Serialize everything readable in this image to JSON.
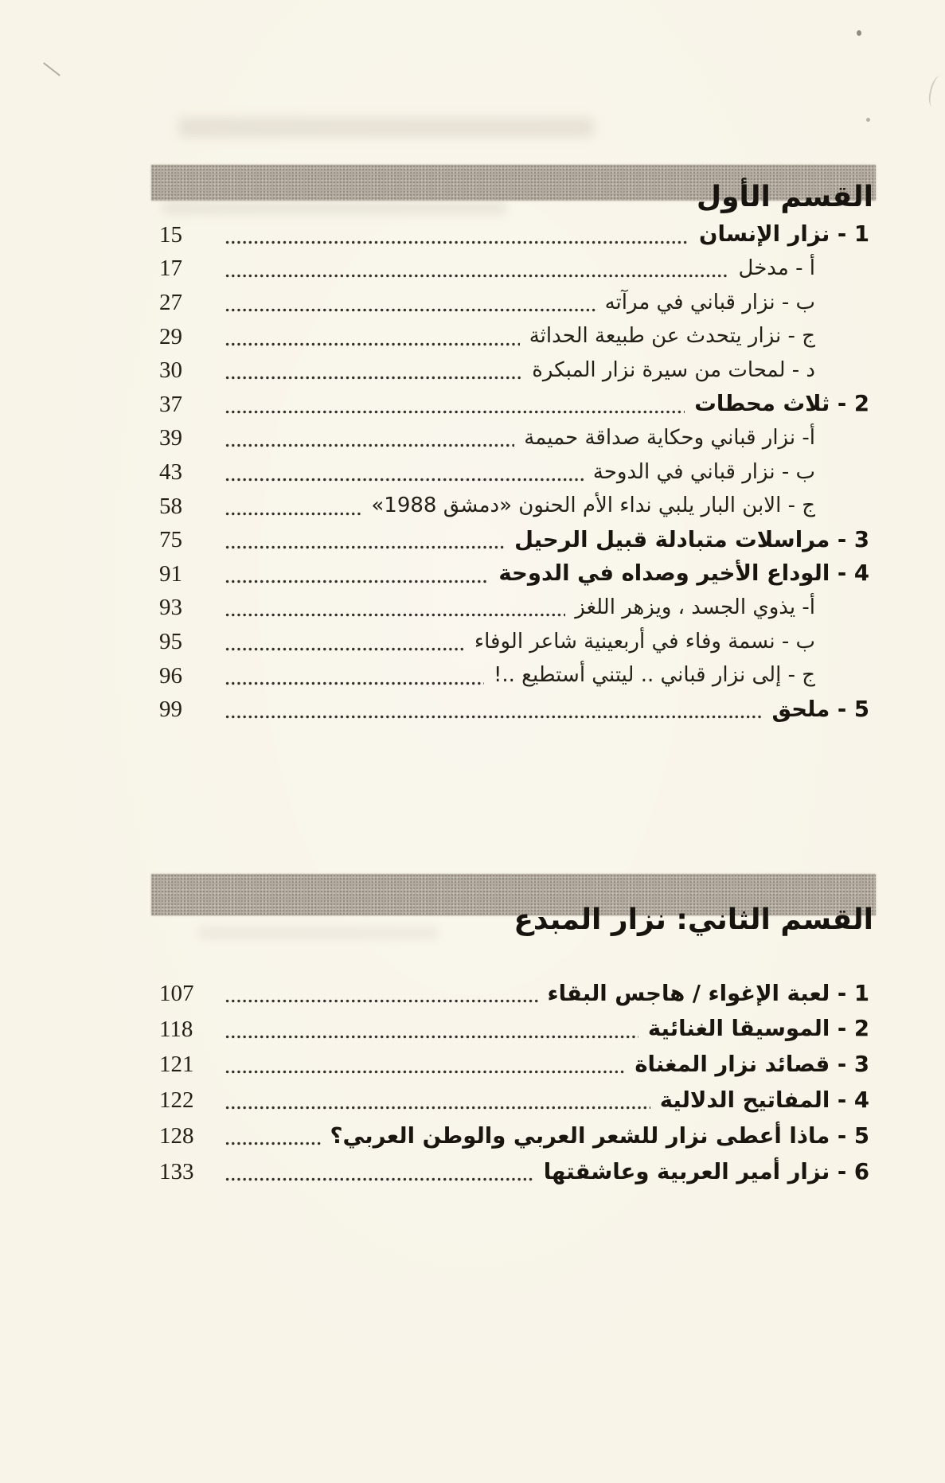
{
  "page": {
    "background": "#f8f4e8",
    "bar_color": "#b4aca0",
    "text_color": "#1e1a14"
  },
  "sections": [
    {
      "title": "القسم الأول",
      "entries": [
        {
          "label": "1 - نزار الإنسان",
          "page": "15",
          "bold": true,
          "indent": false
        },
        {
          "label": "أ - مدخل",
          "page": "17",
          "bold": false,
          "indent": true
        },
        {
          "label": "ب - نزار قباني في مرآته",
          "page": "27",
          "bold": false,
          "indent": true
        },
        {
          "label": "ج - نزار يتحدث عن طبيعة الحداثة",
          "page": "29",
          "bold": false,
          "indent": true
        },
        {
          "label": "د - لمحات من سيرة نزار المبكرة",
          "page": "30",
          "bold": false,
          "indent": true
        },
        {
          "label": "2 - ثلاث محطات",
          "page": "37",
          "bold": true,
          "indent": false
        },
        {
          "label": "أ- نزار قباني وحكاية صداقة حميمة",
          "page": "39",
          "bold": false,
          "indent": true
        },
        {
          "label": "ب - نزار قباني في الدوحة",
          "page": "43",
          "bold": false,
          "indent": true
        },
        {
          "label": "ج - الابن البار يلبي نداء الأم الحنون «دمشق 1988»",
          "page": "58",
          "bold": false,
          "indent": true
        },
        {
          "label": "3 - مراسلات متبادلة قبيل الرحيل",
          "page": "75",
          "bold": true,
          "indent": false
        },
        {
          "label": "4 - الوداع الأخير وصداه في الدوحة",
          "page": "91",
          "bold": true,
          "indent": false
        },
        {
          "label": "أ- يذوي الجسد ، ويزهر اللغز",
          "page": "93",
          "bold": false,
          "indent": true
        },
        {
          "label": "ب - نسمة وفاء في أربعينية شاعر الوفاء",
          "page": "95",
          "bold": false,
          "indent": true
        },
        {
          "label": "ج - إلى نزار قباني .. ليتني أستطيع ..!",
          "page": "96",
          "bold": false,
          "indent": true
        },
        {
          "label": "5 - ملحق",
          "page": "99",
          "bold": true,
          "indent": false
        }
      ]
    },
    {
      "title": "القسم الثاني: نزار المبدع",
      "entries": [
        {
          "label": "1 - لعبة الإغواء / هاجس البقاء",
          "page": "107",
          "bold": true,
          "indent": false
        },
        {
          "label": "2 - الموسيقا الغنائية",
          "page": "118",
          "bold": true,
          "indent": false
        },
        {
          "label": "3 - قصائد نزار المغناة",
          "page": "121",
          "bold": true,
          "indent": false
        },
        {
          "label": "4 - المفاتيح الدلالية",
          "page": "122",
          "bold": true,
          "indent": false
        },
        {
          "label": "5 - ماذا أعطى نزار للشعر العربي والوطن العربي؟",
          "page": "128",
          "bold": true,
          "indent": false
        },
        {
          "label": "6 - نزار أمير العربية وعاشقتها",
          "page": "133",
          "bold": true,
          "indent": false
        }
      ]
    }
  ]
}
